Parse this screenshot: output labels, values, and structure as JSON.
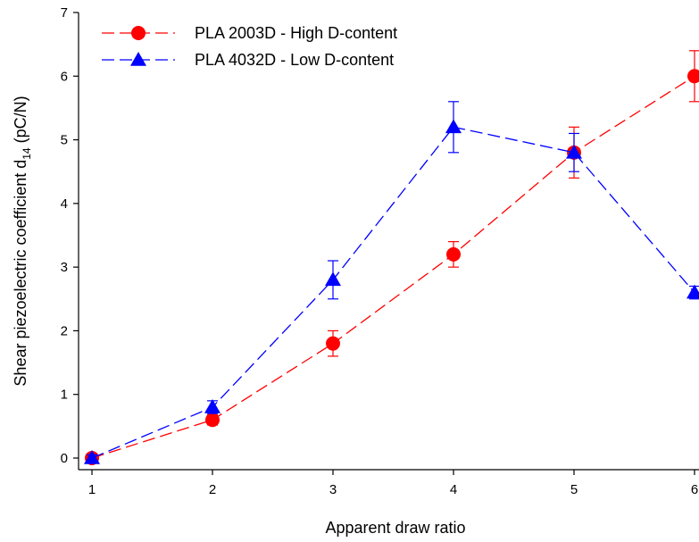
{
  "chart_data": {
    "type": "line",
    "xlabel": "Apparent draw ratio",
    "ylabel_main": "Shear piezoelectric coefficient d",
    "ylabel_sub": "14",
    "ylabel_tail": " (pC/N)",
    "xlim": [
      1,
      6
    ],
    "ylim": [
      0,
      7
    ],
    "x_ticks": [
      "1",
      "2",
      "3",
      "4",
      "5",
      "6"
    ],
    "y_ticks": [
      "0",
      "1",
      "2",
      "3",
      "4",
      "5",
      "6",
      "7"
    ],
    "grid": false,
    "legend_position": "top-left",
    "series": [
      {
        "name": "PLA 2003D - High D-content",
        "color": "#ff0000",
        "marker": "circle",
        "line_style": "dashed",
        "x": [
          1,
          2,
          3,
          4,
          5,
          6
        ],
        "y": [
          0,
          0.6,
          1.8,
          3.2,
          4.8,
          6.0
        ],
        "err": [
          0.05,
          0.08,
          0.2,
          0.2,
          0.4,
          0.4
        ]
      },
      {
        "name": "PLA 4032D - Low D-content",
        "color": "#0000ff",
        "marker": "triangle",
        "line_style": "dashed",
        "x": [
          1,
          2,
          3,
          4,
          5,
          6
        ],
        "y": [
          0,
          0.8,
          2.8,
          5.2,
          4.8,
          2.6
        ],
        "err": [
          0.05,
          0.1,
          0.3,
          0.4,
          0.3,
          0.1
        ]
      }
    ]
  }
}
